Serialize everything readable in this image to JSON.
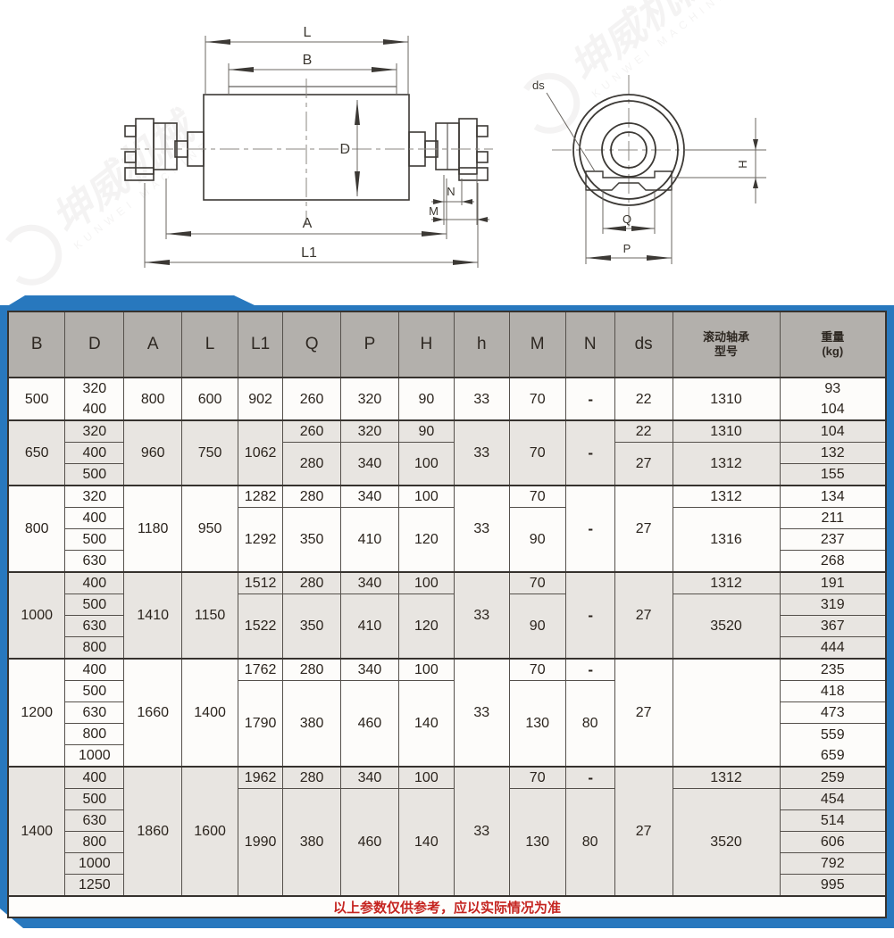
{
  "watermark": {
    "logo_text": "坤威机械",
    "subtitle": "KUNWEI MACHINE"
  },
  "drawings": {
    "side_view": {
      "labels": {
        "L": "L",
        "B": "B",
        "D": "D",
        "A": "A",
        "L1": "L1",
        "N": "N",
        "M": "M"
      }
    },
    "end_view": {
      "labels": {
        "ds": "ds",
        "Q": "Q",
        "P": "P",
        "H": "H"
      }
    }
  },
  "colors": {
    "accent_blue": "#2878be",
    "header_gray": "#b3b0ac",
    "row_shade": "#e8e5e1",
    "note_red": "#c52420"
  },
  "table": {
    "headers": [
      "B",
      "D",
      "A",
      "L",
      "L1",
      "Q",
      "P",
      "H",
      "h",
      "M",
      "N",
      "ds",
      "滚动轴承\n型号",
      "重量\n(kg)"
    ],
    "footer_note": "以上参数仅供参考，应以实际情况为准",
    "groups": [
      {
        "b": "500",
        "rows": [
          [
            {
              "c": "B",
              "v": "500",
              "rs": 2
            },
            {
              "c": "D",
              "v": "320\n400",
              "rs": 2
            },
            {
              "c": "A",
              "v": "800",
              "rs": 2
            },
            {
              "c": "L",
              "v": "600",
              "rs": 2
            },
            {
              "c": "L1",
              "v": "902",
              "rs": 2
            },
            {
              "c": "Q",
              "v": "260",
              "rs": 2
            },
            {
              "c": "P",
              "v": "320",
              "rs": 2
            },
            {
              "c": "H",
              "v": "90",
              "rs": 2
            },
            {
              "c": "h",
              "v": "33",
              "rs": 2
            },
            {
              "c": "M",
              "v": "70",
              "rs": 2
            },
            {
              "c": "N",
              "v": "-",
              "rs": 2,
              "cls": "dash"
            },
            {
              "c": "ds",
              "v": "22",
              "rs": 2
            },
            {
              "c": "brg",
              "v": "1310",
              "rs": 2
            },
            {
              "c": "wt",
              "v": "93\n104",
              "rs": 2
            }
          ],
          []
        ]
      },
      {
        "b": "650",
        "rows": [
          [
            {
              "c": "B",
              "v": "650",
              "rs": 3
            },
            {
              "c": "D",
              "v": "320"
            },
            {
              "c": "A",
              "v": "960",
              "rs": 3
            },
            {
              "c": "L",
              "v": "750",
              "rs": 3
            },
            {
              "c": "L1",
              "v": "1062",
              "rs": 3
            },
            {
              "c": "Q",
              "v": "260"
            },
            {
              "c": "P",
              "v": "320"
            },
            {
              "c": "H",
              "v": "90"
            },
            {
              "c": "h",
              "v": "33",
              "rs": 3
            },
            {
              "c": "M",
              "v": "70",
              "rs": 3
            },
            {
              "c": "N",
              "v": "-",
              "rs": 3,
              "cls": "dash"
            },
            {
              "c": "ds",
              "v": "22"
            },
            {
              "c": "brg",
              "v": "1310"
            },
            {
              "c": "wt",
              "v": "104"
            }
          ],
          [
            {
              "c": "D",
              "v": "400"
            },
            {
              "c": "Q",
              "v": "280",
              "rs": 2
            },
            {
              "c": "P",
              "v": "340",
              "rs": 2
            },
            {
              "c": "H",
              "v": "100",
              "rs": 2
            },
            {
              "c": "ds",
              "v": "27",
              "rs": 2
            },
            {
              "c": "brg",
              "v": "1312",
              "rs": 2
            },
            {
              "c": "wt",
              "v": "132"
            }
          ],
          [
            {
              "c": "D",
              "v": "500"
            },
            {
              "c": "wt",
              "v": "155"
            }
          ]
        ]
      },
      {
        "b": "800",
        "rows": [
          [
            {
              "c": "B",
              "v": "800",
              "rs": 4
            },
            {
              "c": "D",
              "v": "320"
            },
            {
              "c": "A",
              "v": "1180",
              "rs": 4
            },
            {
              "c": "L",
              "v": "950",
              "rs": 4
            },
            {
              "c": "L1",
              "v": "1282"
            },
            {
              "c": "Q",
              "v": "280"
            },
            {
              "c": "P",
              "v": "340"
            },
            {
              "c": "H",
              "v": "100"
            },
            {
              "c": "h",
              "v": "33",
              "rs": 4
            },
            {
              "c": "M",
              "v": "70"
            },
            {
              "c": "N",
              "v": "-",
              "rs": 4,
              "cls": "dash"
            },
            {
              "c": "ds",
              "v": "27",
              "rs": 4
            },
            {
              "c": "brg",
              "v": "1312"
            },
            {
              "c": "wt",
              "v": "134"
            }
          ],
          [
            {
              "c": "D",
              "v": "400"
            },
            {
              "c": "L1",
              "v": "1292",
              "rs": 3
            },
            {
              "c": "Q",
              "v": "350",
              "rs": 3
            },
            {
              "c": "P",
              "v": "410",
              "rs": 3
            },
            {
              "c": "H",
              "v": "120",
              "rs": 3
            },
            {
              "c": "M",
              "v": "90",
              "rs": 3
            },
            {
              "c": "brg",
              "v": "1316",
              "rs": 3
            },
            {
              "c": "wt",
              "v": "211"
            }
          ],
          [
            {
              "c": "D",
              "v": "500"
            },
            {
              "c": "wt",
              "v": "237"
            }
          ],
          [
            {
              "c": "D",
              "v": "630"
            },
            {
              "c": "wt",
              "v": "268"
            }
          ]
        ]
      },
      {
        "b": "1000",
        "rows": [
          [
            {
              "c": "B",
              "v": "1000",
              "rs": 4
            },
            {
              "c": "D",
              "v": "400"
            },
            {
              "c": "A",
              "v": "1410",
              "rs": 4
            },
            {
              "c": "L",
              "v": "1150",
              "rs": 4
            },
            {
              "c": "L1",
              "v": "1512"
            },
            {
              "c": "Q",
              "v": "280"
            },
            {
              "c": "P",
              "v": "340"
            },
            {
              "c": "H",
              "v": "100"
            },
            {
              "c": "h",
              "v": "33",
              "rs": 4
            },
            {
              "c": "M",
              "v": "70"
            },
            {
              "c": "N",
              "v": "-",
              "rs": 4,
              "cls": "dash"
            },
            {
              "c": "ds",
              "v": "27",
              "rs": 4
            },
            {
              "c": "brg",
              "v": "1312"
            },
            {
              "c": "wt",
              "v": "191"
            }
          ],
          [
            {
              "c": "D",
              "v": "500"
            },
            {
              "c": "L1",
              "v": "1522",
              "rs": 3
            },
            {
              "c": "Q",
              "v": "350",
              "rs": 3
            },
            {
              "c": "P",
              "v": "410",
              "rs": 3
            },
            {
              "c": "H",
              "v": "120",
              "rs": 3
            },
            {
              "c": "M",
              "v": "90",
              "rs": 3
            },
            {
              "c": "brg",
              "v": "3520",
              "rs": 3
            },
            {
              "c": "wt",
              "v": "319"
            }
          ],
          [
            {
              "c": "D",
              "v": "630"
            },
            {
              "c": "wt",
              "v": "367"
            }
          ],
          [
            {
              "c": "D",
              "v": "800"
            },
            {
              "c": "wt",
              "v": "444"
            }
          ]
        ]
      },
      {
        "b": "1200",
        "rows": [
          [
            {
              "c": "B",
              "v": "1200",
              "rs": 5
            },
            {
              "c": "D",
              "v": "400"
            },
            {
              "c": "A",
              "v": "1660",
              "rs": 5
            },
            {
              "c": "L",
              "v": "1400",
              "rs": 5
            },
            {
              "c": "L1",
              "v": "1762"
            },
            {
              "c": "Q",
              "v": "280"
            },
            {
              "c": "P",
              "v": "340"
            },
            {
              "c": "H",
              "v": "100"
            },
            {
              "c": "h",
              "v": "33",
              "rs": 5
            },
            {
              "c": "M",
              "v": "70"
            },
            {
              "c": "N",
              "v": "-",
              "cls": "dash"
            },
            {
              "c": "ds",
              "v": "27",
              "rs": 5
            },
            {
              "c": "brg",
              "v": "",
              "rs": 5
            },
            {
              "c": "wt",
              "v": "235"
            }
          ],
          [
            {
              "c": "D",
              "v": "500"
            },
            {
              "c": "L1",
              "v": "1790",
              "rs": 4
            },
            {
              "c": "Q",
              "v": "380",
              "rs": 4
            },
            {
              "c": "P",
              "v": "460",
              "rs": 4
            },
            {
              "c": "H",
              "v": "140",
              "rs": 4
            },
            {
              "c": "M",
              "v": "130",
              "rs": 4
            },
            {
              "c": "N",
              "v": "80",
              "rs": 4
            },
            {
              "c": "wt",
              "v": "418"
            }
          ],
          [
            {
              "c": "D",
              "v": "630"
            },
            {
              "c": "wt",
              "v": "473"
            }
          ],
          [
            {
              "c": "D",
              "v": "800"
            },
            {
              "c": "wt",
              "v": "559\n659",
              "rs": 2
            }
          ],
          [
            {
              "c": "D",
              "v": "1000"
            }
          ]
        ]
      },
      {
        "b": "1400",
        "rows": [
          [
            {
              "c": "B",
              "v": "1400",
              "rs": 6
            },
            {
              "c": "D",
              "v": "400"
            },
            {
              "c": "A",
              "v": "1860",
              "rs": 6
            },
            {
              "c": "L",
              "v": "1600",
              "rs": 6
            },
            {
              "c": "L1",
              "v": "1962"
            },
            {
              "c": "Q",
              "v": "280"
            },
            {
              "c": "P",
              "v": "340"
            },
            {
              "c": "H",
              "v": "100"
            },
            {
              "c": "h",
              "v": "33",
              "rs": 6
            },
            {
              "c": "M",
              "v": "70"
            },
            {
              "c": "N",
              "v": "-",
              "cls": "dash"
            },
            {
              "c": "ds",
              "v": "27",
              "rs": 6
            },
            {
              "c": "brg",
              "v": "1312"
            },
            {
              "c": "wt",
              "v": "259"
            }
          ],
          [
            {
              "c": "D",
              "v": "500"
            },
            {
              "c": "L1",
              "v": "1990",
              "rs": 5
            },
            {
              "c": "Q",
              "v": "380",
              "rs": 5
            },
            {
              "c": "P",
              "v": "460",
              "rs": 5
            },
            {
              "c": "H",
              "v": "140",
              "rs": 5
            },
            {
              "c": "M",
              "v": "130",
              "rs": 5
            },
            {
              "c": "N",
              "v": "80",
              "rs": 5
            },
            {
              "c": "brg",
              "v": "3520",
              "rs": 5
            },
            {
              "c": "wt",
              "v": "454"
            }
          ],
          [
            {
              "c": "D",
              "v": "630"
            },
            {
              "c": "wt",
              "v": "514"
            }
          ],
          [
            {
              "c": "D",
              "v": "800"
            },
            {
              "c": "wt",
              "v": "606"
            }
          ],
          [
            {
              "c": "D",
              "v": "1000"
            },
            {
              "c": "wt",
              "v": "792"
            }
          ],
          [
            {
              "c": "D",
              "v": "1250"
            },
            {
              "c": "wt",
              "v": "995"
            }
          ]
        ]
      }
    ]
  }
}
